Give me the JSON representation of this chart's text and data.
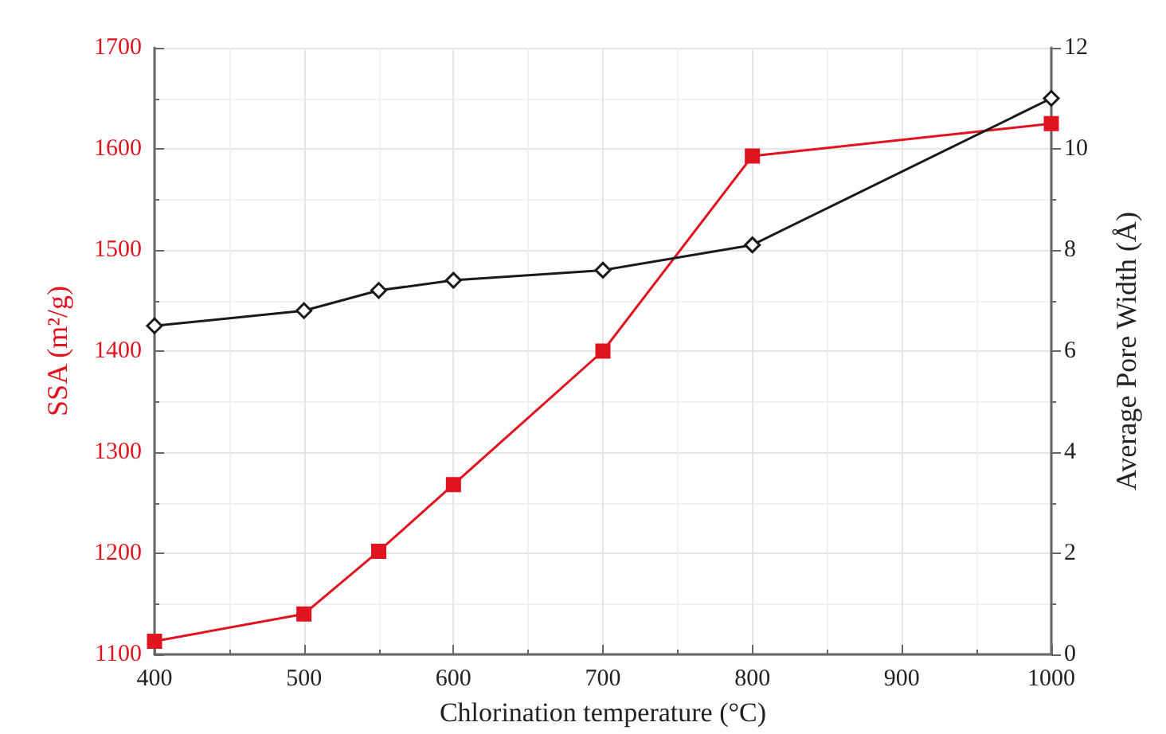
{
  "chart_data": {
    "type": "line",
    "xlabel": "Chlorination temperature (°C)",
    "ylabel": "SSA (m²/g)",
    "y2label": "Average Pore Width (Å)",
    "xlim": [
      400,
      1000
    ],
    "xticks": [
      400,
      500,
      600,
      700,
      800,
      900,
      1000
    ],
    "ylim": [
      1100,
      1700
    ],
    "yticks": [
      1100,
      1200,
      1300,
      1400,
      1500,
      1600,
      1700
    ],
    "y2lim": [
      0,
      12
    ],
    "y2ticks": [
      0,
      2,
      4,
      6,
      8,
      10,
      12
    ],
    "grid": true,
    "series": [
      {
        "color": "#e0141e",
        "marker": "square",
        "x": [
          400,
          500,
          550,
          600,
          700,
          800,
          1000
        ],
        "values": [
          1113,
          1140,
          1202,
          1268,
          1400,
          1593,
          1625
        ]
      },
      {
        "color": "#1a1a1a",
        "marker": "diamond",
        "axis": "y2",
        "x": [
          400,
          500,
          550,
          600,
          700,
          800,
          1000
        ],
        "values": [
          6.5,
          6.8,
          7.2,
          7.4,
          7.6,
          8.1,
          11.0
        ]
      }
    ]
  }
}
